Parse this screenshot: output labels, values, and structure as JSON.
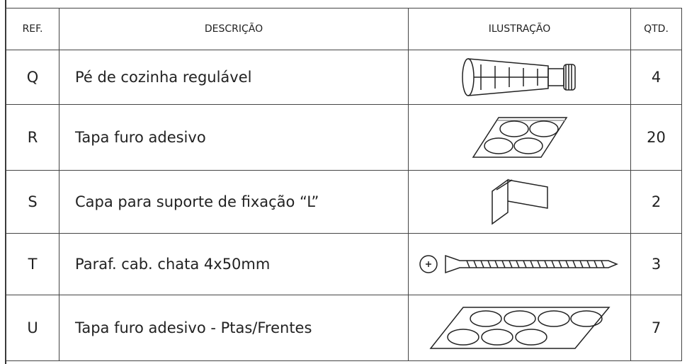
{
  "table": {
    "header": [
      "REF.",
      "DESCRIÇÃO",
      "ILUSTRAÇÃO",
      "QTD."
    ],
    "rows": [
      [
        "Q",
        "Pé de cozinha regulável",
        4
      ],
      [
        "R",
        "Tapa furo adesivo",
        20
      ],
      [
        "S",
        "Capa para suporte de fixação “L”",
        2
      ],
      [
        "T",
        "Paraf. cab. chata 4x50mm",
        3
      ],
      [
        "U",
        "Tapa furo adesivo - Ptas/Frentes",
        7
      ]
    ]
  }
}
